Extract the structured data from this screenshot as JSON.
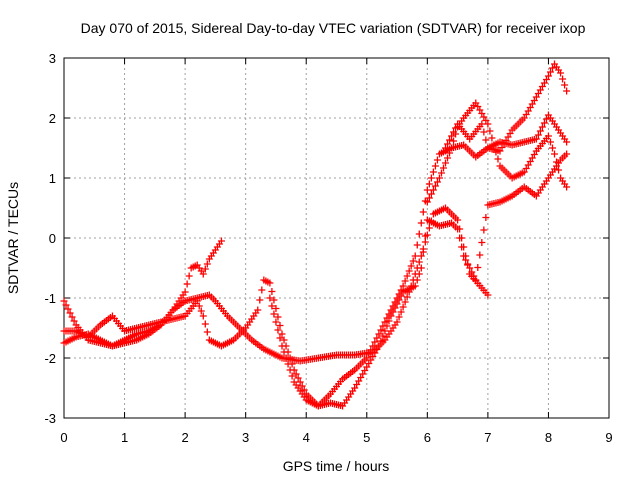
{
  "chart_data": {
    "type": "scatter",
    "title": "Day 070 of 2015, Sidereal Day-to-day VTEC variation (SDTVAR) for receiver ixop",
    "xlabel": "GPS time / hours",
    "ylabel": "SDTVAR / TECUs",
    "xlim": [
      0,
      9
    ],
    "ylim": [
      -3,
      3
    ],
    "xticks": [
      0,
      1,
      2,
      3,
      4,
      5,
      6,
      7,
      8,
      9
    ],
    "yticks": [
      -3,
      -2,
      -1,
      0,
      1,
      2,
      3
    ],
    "grid": true,
    "marker": "plus",
    "color": "#ff0000",
    "series": [
      {
        "x": [
          0.0,
          0.2,
          0.4,
          0.6,
          0.8,
          1.0,
          1.2,
          1.4,
          1.6,
          1.8,
          2.0,
          2.1,
          2.2,
          2.3,
          2.4,
          2.6
        ],
        "y": [
          -1.75,
          -1.65,
          -1.6,
          -1.7,
          -1.8,
          -1.7,
          -1.6,
          -1.55,
          -1.45,
          -1.2,
          -0.9,
          -0.5,
          -0.45,
          -0.6,
          -0.35,
          -0.05
        ]
      },
      {
        "x": [
          0.0,
          0.2,
          0.4,
          0.6,
          0.8,
          1.0,
          1.2,
          1.4,
          1.6,
          1.8,
          2.0,
          2.2,
          2.4,
          2.5,
          2.7,
          2.9,
          3.1,
          3.3,
          3.6,
          3.9,
          4.2,
          4.5,
          4.8,
          5.1,
          5.3,
          5.5,
          5.7,
          5.9,
          6.1,
          6.3,
          6.5,
          6.7,
          7.0
        ],
        "y": [
          -1.05,
          -1.45,
          -1.7,
          -1.75,
          -1.8,
          -1.75,
          -1.7,
          -1.6,
          -1.45,
          -1.2,
          -1.05,
          -1.0,
          -0.95,
          -1.05,
          -1.3,
          -1.5,
          -1.7,
          -1.85,
          -2.0,
          -2.05,
          -2.0,
          -1.95,
          -1.95,
          -1.9,
          -1.7,
          -1.4,
          -0.9,
          -0.3,
          0.4,
          0.5,
          0.3,
          -0.6,
          -0.95
        ]
      },
      {
        "x": [
          0.0,
          0.2,
          0.4,
          0.6,
          0.8,
          1.0,
          1.2,
          1.4,
          1.6,
          1.8,
          2.0,
          2.2,
          2.3,
          2.4,
          2.6,
          2.8,
          3.0,
          3.2,
          3.3,
          3.4,
          3.6,
          3.8,
          4.0,
          4.2,
          4.4,
          4.6,
          4.8,
          5.0,
          5.2,
          5.4,
          5.6,
          5.8,
          5.9,
          6.0,
          6.2,
          6.4,
          6.5,
          6.6,
          6.8,
          7.0,
          7.2,
          7.4,
          7.6,
          7.8,
          8.0,
          8.2,
          8.3
        ],
        "y": [
          -1.55,
          -1.55,
          -1.65,
          -1.45,
          -1.3,
          -1.55,
          -1.5,
          -1.45,
          -1.4,
          -1.35,
          -1.3,
          -1.05,
          -1.3,
          -1.7,
          -1.8,
          -1.7,
          -1.5,
          -1.2,
          -0.7,
          -0.75,
          -1.6,
          -2.2,
          -2.6,
          -2.8,
          -2.75,
          -2.8,
          -2.5,
          -2.15,
          -1.8,
          -1.3,
          -0.9,
          -0.8,
          -0.5,
          0.3,
          0.2,
          0.25,
          0.15,
          -0.3,
          -0.7,
          0.55,
          0.6,
          0.7,
          0.85,
          0.7,
          1.0,
          1.3,
          1.4
        ]
      },
      {
        "x": [
          3.4,
          3.6,
          3.8,
          4.0,
          4.2,
          4.4,
          4.6,
          4.8,
          5.0,
          5.2,
          5.4,
          5.6,
          5.8,
          6.0,
          6.2,
          6.4,
          6.6,
          6.8,
          7.0,
          7.2,
          7.4,
          7.6,
          7.8,
          8.0,
          8.2,
          8.3
        ],
        "y": [
          -1.0,
          -1.8,
          -2.4,
          -2.7,
          -2.8,
          -2.6,
          -2.35,
          -2.2,
          -2.0,
          -1.6,
          -1.2,
          -0.8,
          -0.3,
          0.8,
          1.4,
          1.5,
          1.55,
          1.35,
          1.5,
          1.6,
          1.55,
          1.6,
          1.65,
          2.05,
          1.75,
          1.6
        ]
      },
      {
        "x": [
          6.0,
          6.2,
          6.4,
          6.5,
          6.6,
          6.8,
          7.0,
          7.2,
          7.4,
          7.6,
          7.8,
          8.0,
          8.1,
          8.2,
          8.3
        ],
        "y": [
          0.6,
          1.0,
          1.5,
          1.85,
          2.0,
          2.25,
          1.9,
          1.2,
          1.0,
          1.1,
          1.45,
          1.7,
          1.4,
          1.0,
          0.85
        ]
      },
      {
        "x": [
          6.3,
          6.5,
          6.7,
          6.9,
          7.0,
          7.2,
          7.4,
          7.6,
          7.8,
          8.0,
          8.1,
          8.2,
          8.3
        ],
        "y": [
          1.5,
          1.9,
          1.65,
          1.9,
          1.5,
          1.45,
          1.8,
          2.0,
          2.35,
          2.7,
          2.9,
          2.75,
          2.45
        ]
      }
    ]
  }
}
